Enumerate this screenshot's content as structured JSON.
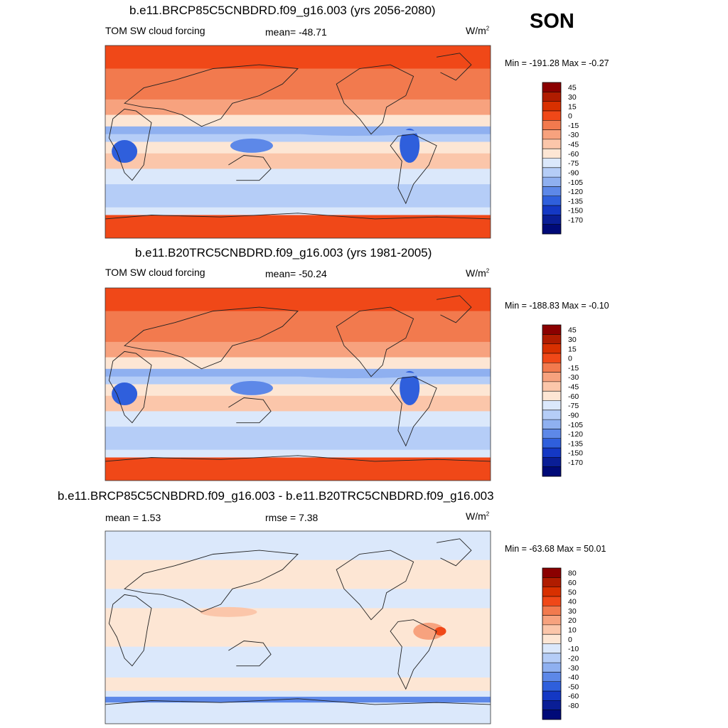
{
  "season": "SON",
  "chart_data": [
    {
      "type": "heatmap",
      "title": "b.e11.BRCP85C5CNBDRD.f09_g16.003 (yrs 2056-2080)",
      "left_label": "TOM SW cloud forcing",
      "center_label": "mean= -48.71",
      "units": "W/m",
      "units_sup": "2",
      "mean": -48.71,
      "min": -191.28,
      "max": -0.27,
      "minmax_text": "Min = -191.28 Max =  -0.27",
      "colorbar_levels": [
        "45",
        "30",
        "15",
        "0",
        "-15",
        "-30",
        "-45",
        "-60",
        "-75",
        "-90",
        "-105",
        "-120",
        "-135",
        "-150",
        "-170"
      ],
      "colorbar_colors": [
        "#8b0000",
        "#b01c00",
        "#d83000",
        "#f04818",
        "#f27a4e",
        "#f7a27e",
        "#fbc6aa",
        "#fde6d4",
        "#dbe8fb",
        "#b5cdf7",
        "#8fb0f0",
        "#5d88e8",
        "#2f5fdc",
        "#1438c4",
        "#0a1e96",
        "#000a78"
      ],
      "field": "current"
    },
    {
      "type": "heatmap",
      "title": "b.e11.B20TRC5CNBDRD.f09_g16.003 (yrs 1981-2005)",
      "left_label": "TOM SW cloud forcing",
      "center_label": "mean= -50.24",
      "units": "W/m",
      "units_sup": "2",
      "mean": -50.24,
      "min": -188.83,
      "max": -0.1,
      "minmax_text": "Min = -188.83 Max =  -0.10",
      "colorbar_levels": [
        "45",
        "30",
        "15",
        "0",
        "-15",
        "-30",
        "-45",
        "-60",
        "-75",
        "-90",
        "-105",
        "-120",
        "-135",
        "-150",
        "-170"
      ],
      "colorbar_colors": [
        "#8b0000",
        "#b01c00",
        "#d83000",
        "#f04818",
        "#f27a4e",
        "#f7a27e",
        "#fbc6aa",
        "#fde6d4",
        "#dbe8fb",
        "#b5cdf7",
        "#8fb0f0",
        "#5d88e8",
        "#2f5fdc",
        "#1438c4",
        "#0a1e96",
        "#000a78"
      ],
      "field": "current"
    },
    {
      "type": "heatmap",
      "title": "b.e11.BRCP85C5CNBDRD.f09_g16.003 - b.e11.B20TRC5CNBDRD.f09_g16.003",
      "left_label": "mean =   1.53",
      "center_label": "rmse =   7.38",
      "units": "W/m",
      "units_sup": "2",
      "mean": 1.53,
      "rmse": 7.38,
      "min": -63.68,
      "max": 50.01,
      "minmax_text": "Min = -63.68 Max =  50.01",
      "colorbar_levels": [
        "80",
        "60",
        "50",
        "40",
        "30",
        "20",
        "10",
        "0",
        "-10",
        "-20",
        "-30",
        "-40",
        "-50",
        "-60",
        "-80"
      ],
      "colorbar_colors": [
        "#8b0000",
        "#b01c00",
        "#d83000",
        "#f04818",
        "#f27a4e",
        "#f7a27e",
        "#fbc6aa",
        "#fde6d4",
        "#dbe8fb",
        "#b5cdf7",
        "#8fb0f0",
        "#5d88e8",
        "#2f5fdc",
        "#1438c4",
        "#0a1e96",
        "#000a78"
      ],
      "field": "diff"
    }
  ]
}
